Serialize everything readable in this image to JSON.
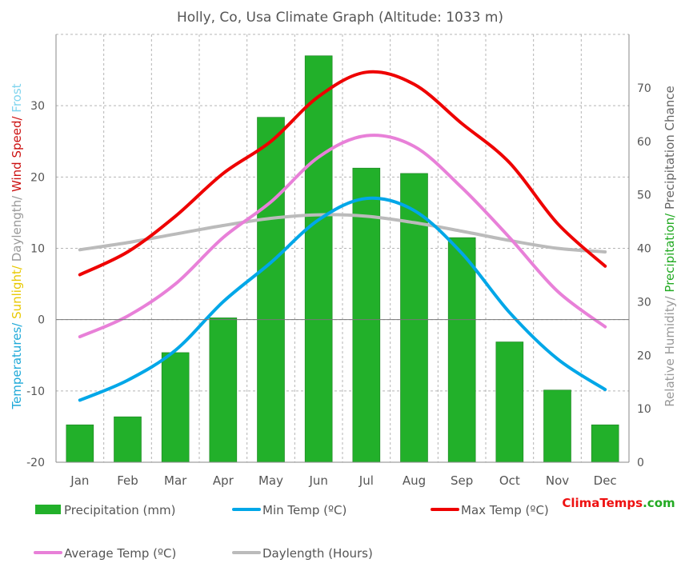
{
  "chart_data": {
    "type": "bar+line",
    "title": "Holly, Co, Usa Climate Graph (Altitude: 1033 m)",
    "categories": [
      "Jan",
      "Feb",
      "Mar",
      "Apr",
      "May",
      "Jun",
      "Jul",
      "Aug",
      "Sep",
      "Oct",
      "Nov",
      "Dec"
    ],
    "y_left": {
      "label_parts": [
        {
          "text": "Temperatures/ ",
          "color": "#1fa9d8"
        },
        {
          "text": "Sunlight/ ",
          "color": "#e8c800"
        },
        {
          "text": "Daylength/ ",
          "color": "#999999"
        },
        {
          "text": "Wind Speed/ ",
          "color": "#cc1111"
        },
        {
          "text": "Frost",
          "color": "#7fd4ee"
        }
      ],
      "range": [
        -20,
        40
      ],
      "ticks": [
        -20,
        -10,
        0,
        10,
        20,
        30
      ]
    },
    "y_right": {
      "label_parts": [
        {
          "text": "Relative Humidity/ ",
          "color": "#999999"
        },
        {
          "text": "Precipitation/ ",
          "color": "#22aa22"
        },
        {
          "text": "Precipitation Chance",
          "color": "#666666"
        }
      ],
      "range": [
        0,
        80
      ],
      "ticks": [
        0,
        10,
        20,
        30,
        40,
        50,
        60,
        70
      ]
    },
    "series": [
      {
        "name": "Precipitation (mm)",
        "kind": "bar",
        "axis": "right",
        "color": "#22b02a",
        "values": [
          7,
          8.5,
          20.5,
          27,
          64.5,
          76,
          55,
          54,
          42,
          22.5,
          13.5,
          7
        ]
      },
      {
        "name": "Min Temp (ºC)",
        "kind": "line",
        "axis": "left",
        "color": "#00a7e8",
        "values": [
          -11.3,
          -8.5,
          -4.3,
          2.5,
          8,
          14,
          17,
          15.3,
          9.3,
          1,
          -5.5,
          -9.8
        ]
      },
      {
        "name": "Max Temp (ºC)",
        "kind": "line",
        "axis": "left",
        "color": "#ee0000",
        "values": [
          6.3,
          9.5,
          14.5,
          20.5,
          25,
          31.3,
          34.7,
          33,
          27.5,
          22,
          13.5,
          7.5
        ]
      },
      {
        "name": "Average Temp (ºC)",
        "kind": "line",
        "axis": "left",
        "color": "#e880d8",
        "values": [
          -2.4,
          0.5,
          5,
          11.5,
          16.5,
          22.8,
          25.8,
          24.3,
          18.5,
          11.5,
          4,
          -1
        ]
      },
      {
        "name": "Daylength (Hours)",
        "kind": "line",
        "axis": "left",
        "color": "#bbbbbb",
        "values": [
          9.8,
          10.8,
          12,
          13.2,
          14.2,
          14.7,
          14.5,
          13.6,
          12.4,
          11.1,
          10,
          9.5
        ]
      }
    ],
    "grid": true,
    "legend_position": "bottom"
  },
  "watermark": {
    "part1": "Clima",
    "part2": "Temps",
    "part3": ".com"
  }
}
